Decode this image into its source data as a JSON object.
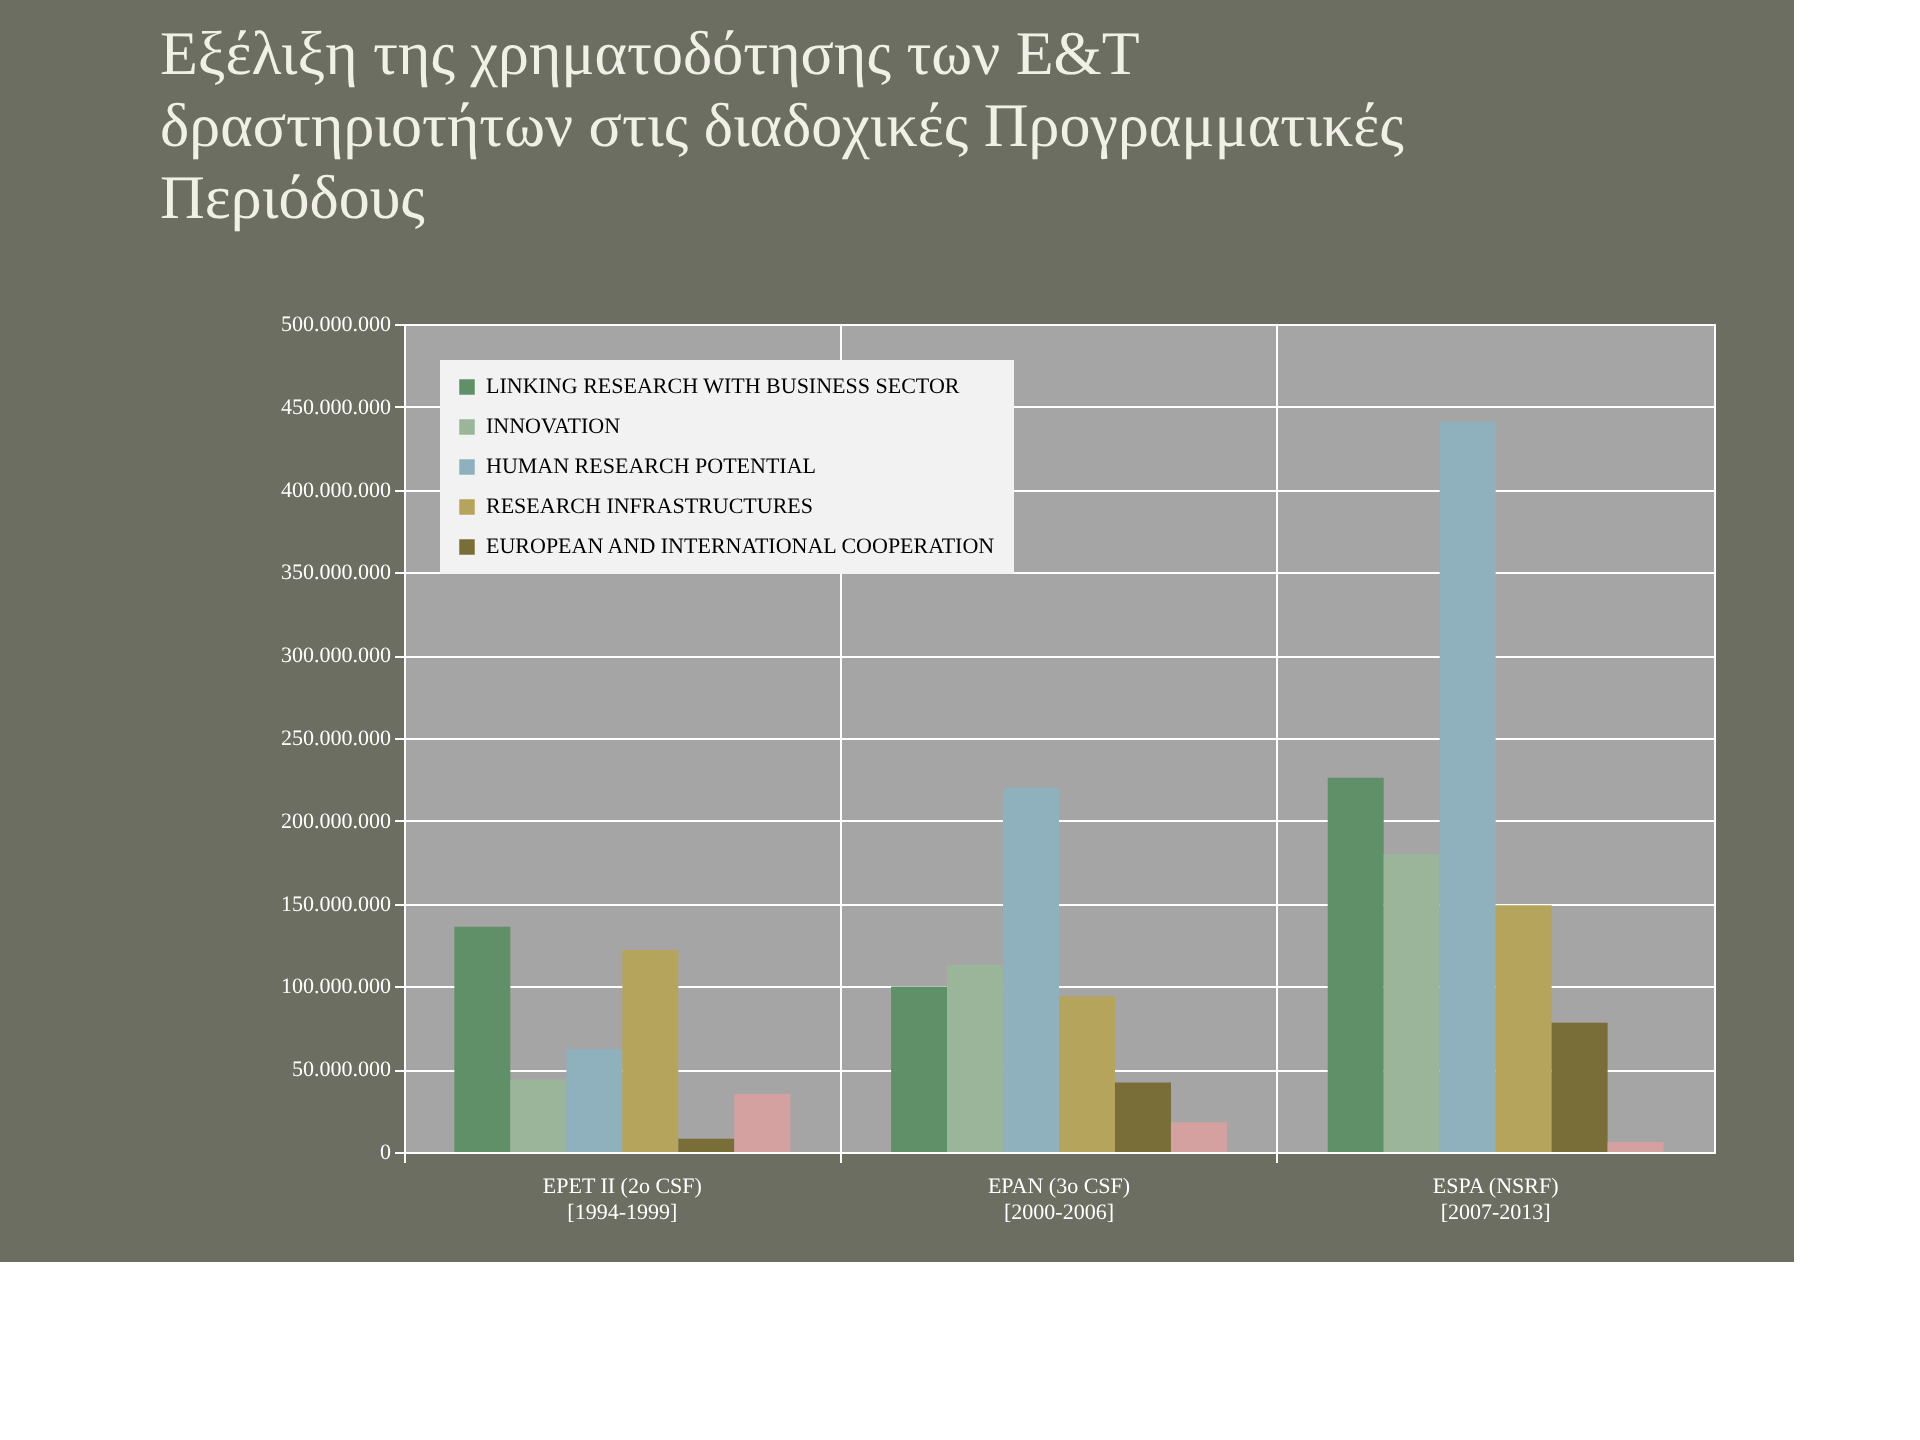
{
  "chart_data": {
    "type": "bar",
    "title": "Εξέλιξη της χρηματοδότησης των Ε&Τ δραστηριοτήτων στις διαδοχικές Προγραμματικές Περιόδους",
    "categories": [
      "EPET II (2o CSF)\n[1994-1999]",
      "EPAN (3o CSF)\n[2000-2006]",
      "ESPA (NSRF)\n[2007-2013]"
    ],
    "series": [
      {
        "name": "LINKING RESEARCH WITH BUSINESS SECTOR",
        "color": "#5f9068",
        "values": [
          136000000,
          100000000,
          226000000
        ]
      },
      {
        "name": "INNOVATION",
        "color": "#9bb59a",
        "values": [
          44000000,
          113000000,
          180000000
        ]
      },
      {
        "name": "HUMAN RESEARCH POTENTIAL",
        "color": "#8fb1bd",
        "values": [
          62000000,
          220000000,
          441000000
        ]
      },
      {
        "name": "RESEARCH INFRASTRUCTURES",
        "color": "#b5a55c",
        "values": [
          122000000,
          94000000,
          149000000
        ]
      },
      {
        "name": "EUROPEAN AND INTERNATIONAL COOPERATION",
        "color": "#7a6e38",
        "values": [
          8000000,
          42000000,
          78000000
        ]
      },
      {
        "color": "#d4a0a0",
        "values": [
          35000000,
          18000000,
          6000000
        ]
      }
    ],
    "ylim": [
      0,
      500000000
    ],
    "yticks": [
      {
        "value": 0,
        "label": "0"
      },
      {
        "value": 50000000,
        "label": "50.000.000"
      },
      {
        "value": 100000000,
        "label": "100.000.000"
      },
      {
        "value": 150000000,
        "label": "150.000.000"
      },
      {
        "value": 200000000,
        "label": "200.000.000"
      },
      {
        "value": 250000000,
        "label": "250.000.000"
      },
      {
        "value": 300000000,
        "label": "300.000.000"
      },
      {
        "value": 350000000,
        "label": "350.000.000"
      },
      {
        "value": 400000000,
        "label": "400.000.000"
      },
      {
        "value": 450000000,
        "label": "450.000.000"
      },
      {
        "value": 500000000,
        "label": "500.000.000"
      }
    ],
    "grid": true,
    "legend": "top left"
  }
}
